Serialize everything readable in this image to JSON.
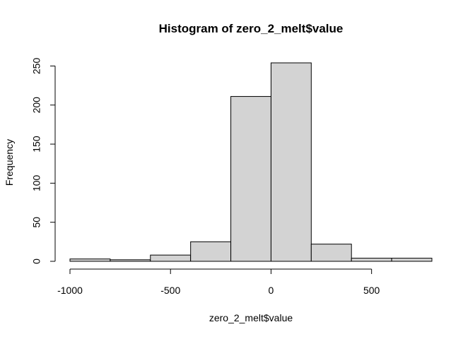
{
  "chart_data": {
    "type": "bar",
    "subtype": "histogram",
    "title": "Histogram of zero_2_melt$value",
    "xlabel": "zero_2_melt$value",
    "ylabel": "Frequency",
    "bin_edges": [
      -1000,
      -800,
      -600,
      -400,
      -200,
      0,
      200,
      400,
      600,
      800
    ],
    "bins": [
      {
        "from": -1000,
        "to": -800,
        "count": 3
      },
      {
        "from": -800,
        "to": -600,
        "count": 2
      },
      {
        "from": -600,
        "to": -400,
        "count": 8
      },
      {
        "from": -400,
        "to": -200,
        "count": 25
      },
      {
        "from": -200,
        "to": 0,
        "count": 211
      },
      {
        "from": 0,
        "to": 200,
        "count": 254
      },
      {
        "from": 200,
        "to": 400,
        "count": 22
      },
      {
        "from": 400,
        "to": 600,
        "count": 4
      },
      {
        "from": 600,
        "to": 800,
        "count": 4
      }
    ],
    "x_ticks": [
      -1000,
      -500,
      0,
      500
    ],
    "x_tick_labels": [
      "-1000",
      "-500",
      "0",
      "500"
    ],
    "y_ticks": [
      0,
      50,
      100,
      150,
      200,
      250
    ],
    "y_tick_labels": [
      "0",
      "50",
      "100",
      "150",
      "200",
      "250"
    ],
    "xlim": [
      -1000,
      800
    ],
    "ylim": [
      0,
      254
    ],
    "bar_fill": "#d3d3d3",
    "bar_stroke": "#000000",
    "grid": false,
    "legend": "none"
  }
}
